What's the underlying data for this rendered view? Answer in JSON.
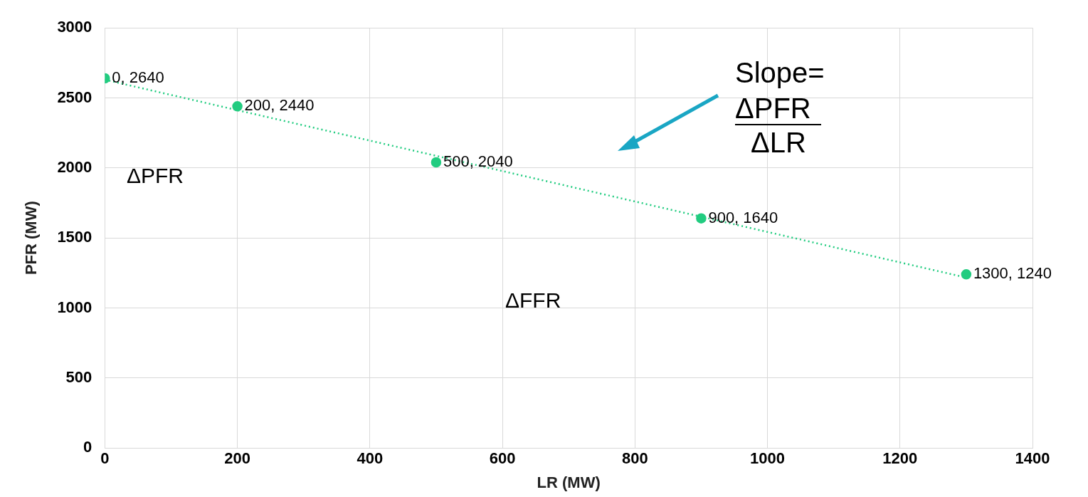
{
  "chart_data": {
    "type": "scatter",
    "xlabel": "LR (MW)",
    "ylabel": "PFR (MW)",
    "xlim": [
      0,
      1400
    ],
    "xticks": [
      0,
      200,
      400,
      600,
      800,
      1000,
      1200,
      1400
    ],
    "ylim": [
      0,
      3000
    ],
    "yticks": [
      0,
      500,
      1000,
      1500,
      2000,
      2500,
      3000
    ],
    "grid": true,
    "legend": false,
    "series": [
      {
        "type": "scatter",
        "color": "#22cc80",
        "marker": "circle",
        "x": [
          0,
          200,
          500,
          900,
          1300
        ],
        "values": [
          2640,
          2440,
          2040,
          1640,
          1240
        ],
        "value_labels": [
          "0, 2640",
          "200, 2440",
          "500, 2040",
          "900, 1640",
          "1300, 1240"
        ]
      },
      {
        "type": "line",
        "color": "#22cc80",
        "marker": "none",
        "line_style": "dotted",
        "x": [
          0,
          1300
        ],
        "values": [
          2630,
          1217
        ]
      }
    ],
    "annotations": [
      "Slope=",
      "ΔPFR",
      "ΔLR",
      "ΔPFR",
      "ΔFFR"
    ]
  }
}
